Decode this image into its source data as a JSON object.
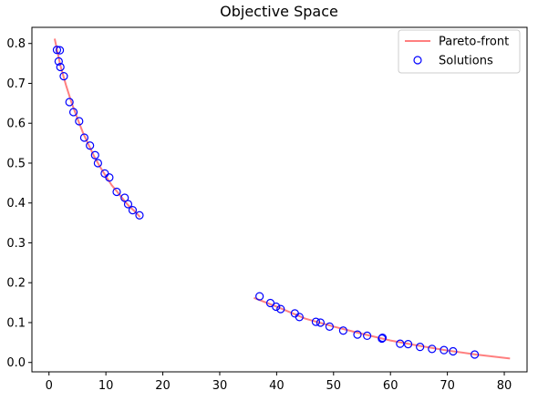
{
  "chart_data": {
    "type": "scatter",
    "title": "Objective Space",
    "xlabel": "",
    "ylabel": "",
    "xlim": [
      -3,
      84
    ],
    "ylim": [
      -0.0235,
      0.8405
    ],
    "x_ticks": [
      0,
      10,
      20,
      30,
      40,
      50,
      60,
      70,
      80
    ],
    "y_ticks": [
      0.0,
      0.1,
      0.2,
      0.3,
      0.4,
      0.5,
      0.6,
      0.7,
      0.8
    ],
    "x_tick_labels": [
      "0",
      "10",
      "20",
      "30",
      "40",
      "50",
      "60",
      "70",
      "80"
    ],
    "y_tick_labels": [
      "0.0",
      "0.1",
      "0.2",
      "0.3",
      "0.4",
      "0.5",
      "0.6",
      "0.7",
      "0.8"
    ],
    "legend_position": "top-right",
    "series": [
      {
        "name": "Pareto-front",
        "kind": "line",
        "color": "#ff7f7f",
        "segments": [
          [
            [
              1.0,
              0.812
            ],
            [
              2.0,
              0.745
            ],
            [
              3.0,
              0.695
            ],
            [
              4.0,
              0.65
            ],
            [
              5.0,
              0.612
            ],
            [
              6.0,
              0.575
            ],
            [
              7.0,
              0.545
            ],
            [
              8.0,
              0.515
            ],
            [
              9.0,
              0.49
            ],
            [
              10.0,
              0.467
            ],
            [
              11.0,
              0.445
            ],
            [
              12.0,
              0.428
            ],
            [
              13.0,
              0.41
            ],
            [
              14.0,
              0.393
            ],
            [
              15.0,
              0.38
            ],
            [
              16.0,
              0.365
            ]
          ],
          [
            [
              36.0,
              0.162
            ],
            [
              40.0,
              0.14
            ],
            [
              45.0,
              0.11
            ],
            [
              50.0,
              0.09
            ],
            [
              55.0,
              0.072
            ],
            [
              60.0,
              0.055
            ],
            [
              65.0,
              0.042
            ],
            [
              70.0,
              0.03
            ],
            [
              75.0,
              0.02
            ],
            [
              81.0,
              0.01
            ]
          ]
        ]
      },
      {
        "name": "Solutions",
        "kind": "scatter",
        "color": "#0000ff",
        "points": [
          [
            1.4,
            0.784
          ],
          [
            1.9,
            0.783
          ],
          [
            1.7,
            0.755
          ],
          [
            2.0,
            0.741
          ],
          [
            2.6,
            0.718
          ],
          [
            3.6,
            0.653
          ],
          [
            4.3,
            0.628
          ],
          [
            5.3,
            0.605
          ],
          [
            6.2,
            0.564
          ],
          [
            7.2,
            0.544
          ],
          [
            8.1,
            0.52
          ],
          [
            8.6,
            0.5
          ],
          [
            9.8,
            0.474
          ],
          [
            10.6,
            0.464
          ],
          [
            11.9,
            0.428
          ],
          [
            13.3,
            0.413
          ],
          [
            13.9,
            0.397
          ],
          [
            14.7,
            0.382
          ],
          [
            15.9,
            0.369
          ],
          [
            37.0,
            0.166
          ],
          [
            38.9,
            0.149
          ],
          [
            39.9,
            0.14
          ],
          [
            40.7,
            0.134
          ],
          [
            43.2,
            0.123
          ],
          [
            44.0,
            0.114
          ],
          [
            46.9,
            0.102
          ],
          [
            47.7,
            0.1
          ],
          [
            49.3,
            0.09
          ],
          [
            51.7,
            0.08
          ],
          [
            54.2,
            0.07
          ],
          [
            55.9,
            0.067
          ],
          [
            58.5,
            0.06
          ],
          [
            58.6,
            0.062
          ],
          [
            61.7,
            0.047
          ],
          [
            63.1,
            0.046
          ],
          [
            65.2,
            0.039
          ],
          [
            67.3,
            0.034
          ],
          [
            69.4,
            0.031
          ],
          [
            71.0,
            0.028
          ],
          [
            74.8,
            0.02
          ]
        ]
      }
    ]
  }
}
